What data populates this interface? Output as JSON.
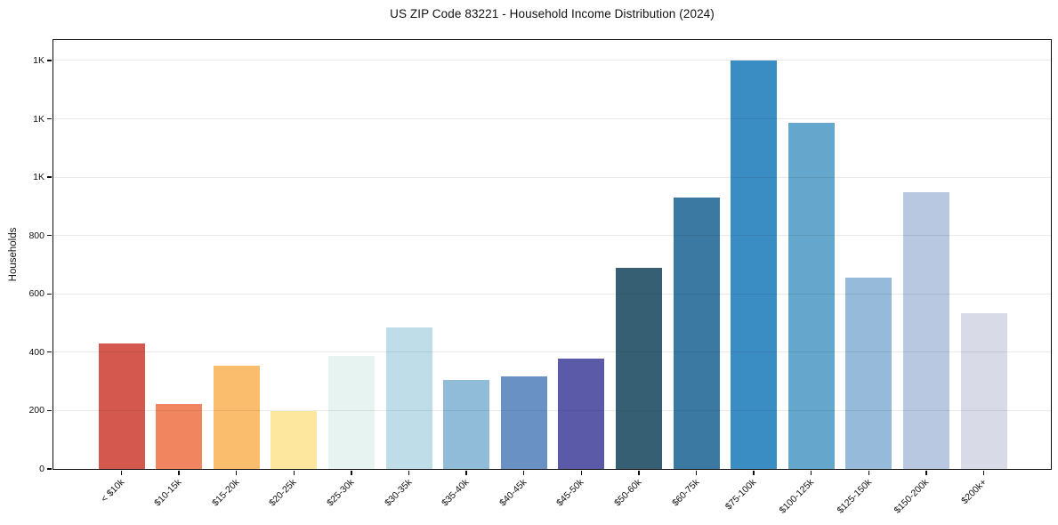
{
  "chart_data": {
    "type": "bar",
    "title": "US ZIP Code 83221 - Household Income Distribution (2024)",
    "xlabel": "",
    "ylabel": "Households",
    "categories": [
      "< $10k",
      "$10-15k",
      "$15-20k",
      "$20-25k",
      "$25-30k",
      "$30-35k",
      "$35-40k",
      "$40-45k",
      "$45-50k",
      "$50-60k",
      "$60-75k",
      "$75-100k",
      "$100-125k",
      "$125-150k",
      "$150-200k",
      "$200k+"
    ],
    "values": [
      430,
      222,
      355,
      198,
      388,
      485,
      306,
      318,
      379,
      690,
      930,
      1400,
      1185,
      655,
      950,
      535
    ],
    "bar_colors": [
      "#d4584e",
      "#f1855f",
      "#fabd6e",
      "#fde79f",
      "#e7f3f0",
      "#bedde8",
      "#90bcd9",
      "#6a91c4",
      "#5b5aa9",
      "#375f73",
      "#3b79a3",
      "#3a8dc3",
      "#64a6cc",
      "#96bad9",
      "#b8c8e1",
      "#d8dae8"
    ],
    "ylim": [
      0,
      1470
    ],
    "yticks": [
      {
        "value": 0,
        "label": "0"
      },
      {
        "value": 200,
        "label": "200"
      },
      {
        "value": 400,
        "label": "400"
      },
      {
        "value": 600,
        "label": "600"
      },
      {
        "value": 800,
        "label": "800"
      },
      {
        "value": 1000,
        "label": "1K"
      },
      {
        "value": 1200,
        "label": "1K"
      },
      {
        "value": 1400,
        "label": "1K"
      }
    ],
    "grid": "horizontal gridlines, light gray, drawn over bars",
    "legend": "none",
    "plot_background": "#ffffff",
    "spine_color": "#0d0d0d"
  }
}
